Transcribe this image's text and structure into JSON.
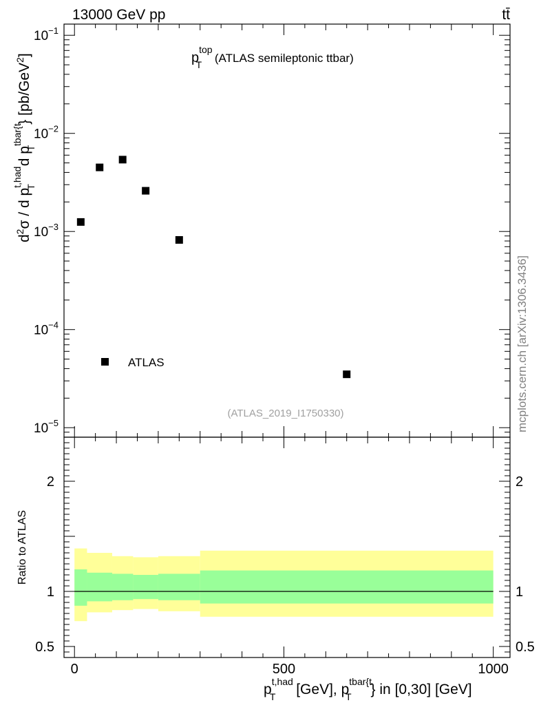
{
  "header": {
    "energy_label": "13000 GeV pp",
    "process_label": "tt̄"
  },
  "watermark": {
    "side_text": "mcplots.cern.ch [arXiv:1306.3436]",
    "analysis_id": "(ATLAS_2019_I1750330)"
  },
  "chart_data": [
    {
      "type": "scatter",
      "panel": "main",
      "title": {
        "base": "p",
        "sup": "top",
        "sub": "T",
        "rest": " (ATLAS semileptonic ttbar)"
      },
      "ylabel": "d²σ / d p_T^{t,had} d p_T^{tbar{t}} [pb/GeV²]",
      "yscale": "log",
      "ylim": [
        8e-06,
        0.13
      ],
      "xlim": [
        -25,
        1040
      ],
      "yticks": [
        {
          "value": 1e-05,
          "mant": "10",
          "exp": "−5"
        },
        {
          "value": 0.0001,
          "mant": "10",
          "exp": "−4"
        },
        {
          "value": 0.001,
          "mant": "10",
          "exp": "−3"
        },
        {
          "value": 0.01,
          "mant": "10",
          "exp": "−2"
        },
        {
          "value": 0.1,
          "mant": "10",
          "exp": "−1"
        }
      ],
      "legend": {
        "entry": "ATLAS",
        "placement": "bottom-left"
      },
      "series": [
        {
          "name": "ATLAS",
          "marker": "square",
          "color": "#000000",
          "x": [
            15,
            60,
            115,
            170,
            250,
            650
          ],
          "y": [
            0.00125,
            0.0045,
            0.0054,
            0.0026,
            0.00082,
            3.5e-05
          ]
        }
      ]
    },
    {
      "type": "area",
      "panel": "ratio",
      "ylabel": "Ratio to ATLAS",
      "ylim": [
        0.4,
        2.4
      ],
      "xlim": [
        -25,
        1040
      ],
      "yticks": [
        {
          "value": 0.5,
          "label": "0.5"
        },
        {
          "value": 1,
          "label": "1"
        },
        {
          "value": 2,
          "label": "2"
        }
      ],
      "xticks": [
        {
          "value": 0,
          "label": "0"
        },
        {
          "value": 500,
          "label": "500"
        },
        {
          "value": 1000,
          "label": "1000"
        }
      ],
      "xlabel": {
        "p1": "p",
        "sup1": "t,had",
        "sub1": "T",
        "mid": " [GeV], ",
        "p2": "p",
        "sup2": "tbar{t",
        "sub2": "T",
        "rest": "} in [0,30] [GeV]"
      },
      "reference_line": 1,
      "bands": {
        "edges": [
          0,
          30,
          90,
          140,
          200,
          300,
          1000
        ],
        "outer_low": [
          0.73,
          0.81,
          0.83,
          0.84,
          0.82,
          0.77
        ],
        "outer_high": [
          1.39,
          1.35,
          1.32,
          1.31,
          1.32,
          1.37
        ],
        "inner_low": [
          0.87,
          0.91,
          0.92,
          0.93,
          0.92,
          0.89
        ],
        "inner_high": [
          1.2,
          1.17,
          1.16,
          1.15,
          1.16,
          1.19
        ],
        "outer_color": "#ffff99",
        "inner_color": "#99ff99"
      }
    }
  ]
}
